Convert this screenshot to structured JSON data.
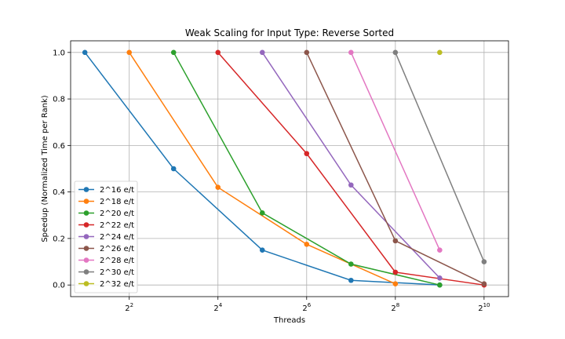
{
  "chart_data": {
    "type": "line",
    "title": "Weak Scaling for Input Type: Reverse Sorted",
    "xlabel": "Threads",
    "ylabel": "Speedup (Normalized Time per Rank)",
    "x_scale": "log2",
    "xlim": [
      1.6,
      1500
    ],
    "ylim": [
      -0.05,
      1.05
    ],
    "x_ticks": [
      {
        "value": 4,
        "base": "2",
        "exp": "2"
      },
      {
        "value": 16,
        "base": "2",
        "exp": "4"
      },
      {
        "value": 64,
        "base": "2",
        "exp": "6"
      },
      {
        "value": 256,
        "base": "2",
        "exp": "8"
      },
      {
        "value": 1024,
        "base": "2",
        "exp": "10"
      }
    ],
    "y_ticks": [
      {
        "value": 0.0,
        "label": "0.0"
      },
      {
        "value": 0.2,
        "label": "0.2"
      },
      {
        "value": 0.4,
        "label": "0.4"
      },
      {
        "value": 0.6,
        "label": "0.6"
      },
      {
        "value": 0.8,
        "label": "0.8"
      },
      {
        "value": 1.0,
        "label": "1.0"
      }
    ],
    "grid": true,
    "legend_position": "lower-left",
    "series": [
      {
        "name": "2^16 e/t",
        "color": "#1f77b4",
        "x": [
          2,
          8,
          32,
          128,
          512
        ],
        "y": [
          1.0,
          0.5,
          0.15,
          0.02,
          0.0
        ]
      },
      {
        "name": "2^18 e/t",
        "color": "#ff7f0e",
        "x": [
          4,
          16,
          64,
          256
        ],
        "y": [
          1.0,
          0.42,
          0.175,
          0.005
        ]
      },
      {
        "name": "2^20 e/t",
        "color": "#2ca02c",
        "x": [
          8,
          32,
          128,
          512
        ],
        "y": [
          1.0,
          0.31,
          0.09,
          0.0
        ]
      },
      {
        "name": "2^22 e/t",
        "color": "#d62728",
        "x": [
          16,
          64,
          256,
          1024
        ],
        "y": [
          1.0,
          0.565,
          0.055,
          0.0
        ]
      },
      {
        "name": "2^24 e/t",
        "color": "#9467bd",
        "x": [
          32,
          128,
          512
        ],
        "y": [
          1.0,
          0.43,
          0.03
        ]
      },
      {
        "name": "2^26 e/t",
        "color": "#8c564b",
        "x": [
          64,
          256,
          1024
        ],
        "y": [
          1.0,
          0.19,
          0.005
        ]
      },
      {
        "name": "2^28 e/t",
        "color": "#e377c2",
        "x": [
          128,
          512
        ],
        "y": [
          1.0,
          0.15
        ]
      },
      {
        "name": "2^30 e/t",
        "color": "#7f7f7f",
        "x": [
          256,
          1024
        ],
        "y": [
          1.0,
          0.1
        ]
      },
      {
        "name": "2^32 e/t",
        "color": "#bcbd22",
        "x": [
          512
        ],
        "y": [
          1.0
        ]
      }
    ]
  }
}
